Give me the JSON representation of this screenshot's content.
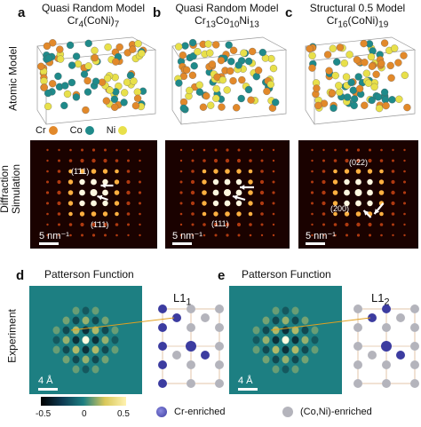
{
  "panels": {
    "a": {
      "letter": "a",
      "title_line1": "Quasi Random Model",
      "title_line2_base": "Cr",
      "title_line2_sub1": "4",
      "title_line2_mid": "(CoNi)",
      "title_line2_sub2": "7",
      "scale": "5 nm⁻¹",
      "miller_top": "(1̄11)",
      "miller_bottom": "(1̄11)"
    },
    "b": {
      "letter": "b",
      "title_line1": "Quasi Random Model",
      "t_cr": "Cr",
      "s1": "13",
      "t_co": "Co",
      "s2": "10",
      "t_ni": "Ni",
      "s3": "13",
      "scale": "5 nm⁻¹",
      "miller_bottom": "(111)"
    },
    "c": {
      "letter": "c",
      "title_line1": "Structural 0.5 Model",
      "title_line2_base": "Cr",
      "title_line2_sub1": "16",
      "title_line2_mid": "(CoNi)",
      "title_line2_sub2": "19",
      "scale": "5 nm⁻¹",
      "miller_top": "(022)",
      "miller_mid": "(200)"
    },
    "d": {
      "letter": "d",
      "title": "Patterson Function",
      "phase": "L1",
      "phase_sub": "1",
      "scale": "4 Å"
    },
    "e": {
      "letter": "e",
      "title": "Patterson Function",
      "phase": "L1",
      "phase_sub": "2",
      "scale": "4 Å"
    }
  },
  "row_labels": {
    "atomic": "Atomic Model",
    "diffraction_line1": "Diffraction",
    "diffraction_line2": "Simulation",
    "experiment": "Experiment"
  },
  "legend_atoms": [
    {
      "label": "Cr",
      "color": "#e2892a"
    },
    {
      "label": "Co",
      "color": "#1f8a8a"
    },
    {
      "label": "Ni",
      "color": "#e8e04a"
    }
  ],
  "colorbar": {
    "ticks": [
      "-0.5",
      "0",
      "0.5"
    ]
  },
  "legend_bottom": [
    {
      "label": "Cr-enriched",
      "color": "#3c3ca0"
    },
    {
      "label": "(Co,Ni)-enriched",
      "color": "#b4b4bc"
    }
  ]
}
